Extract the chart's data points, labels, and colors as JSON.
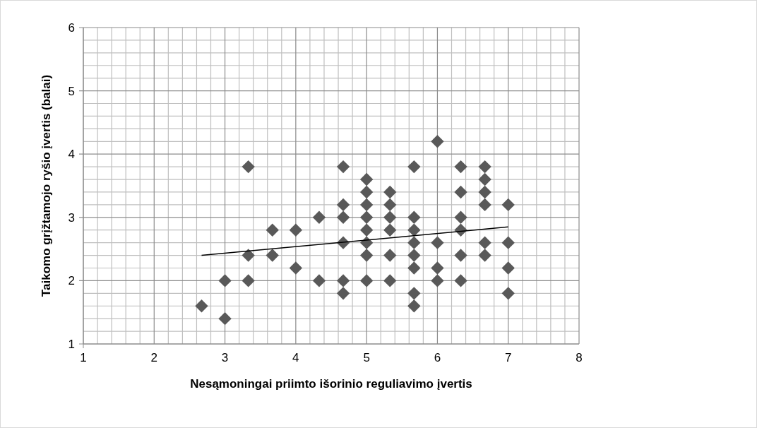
{
  "chart_data": {
    "type": "scatter",
    "xlabel": "Nesąmoningai priimto išorinio reguliavimo įvertis",
    "ylabel": "Taikomo grįžtamojo ryšio įvertis (balai)",
    "xlim": [
      1,
      8
    ],
    "ylim": [
      1,
      6
    ],
    "xticks": [
      1,
      2,
      3,
      4,
      5,
      6,
      7,
      8
    ],
    "yticks": [
      1,
      2,
      3,
      4,
      5,
      6
    ],
    "grid": true,
    "series": [
      {
        "color": "#595959",
        "marker": "diamond",
        "x": [
          2.67,
          3,
          3,
          3.33,
          3.33,
          3.33,
          3.67,
          3.67,
          4,
          4,
          4.33,
          4.33,
          4.67,
          4.67,
          4.67,
          4.67,
          4.67,
          4.67,
          5,
          5,
          5,
          5,
          5,
          5,
          5,
          5,
          5.33,
          5.33,
          5.33,
          5.33,
          5.33,
          5.33,
          5.67,
          5.67,
          5.67,
          5.67,
          5.67,
          5.67,
          5.67,
          5.67,
          6,
          6,
          6,
          6,
          6.33,
          6.33,
          6.33,
          6.33,
          6.33,
          6.33,
          6.67,
          6.67,
          6.67,
          6.67,
          6.67,
          6.67,
          7,
          7,
          7,
          7
        ],
        "values": [
          1.6,
          2,
          1.4,
          3.8,
          2.4,
          2,
          2.8,
          2.4,
          2.8,
          2.2,
          3,
          2,
          3.8,
          3.2,
          3,
          2.6,
          2,
          1.8,
          3.6,
          3.4,
          3.2,
          3,
          2.8,
          2.6,
          2.4,
          2,
          3.4,
          3.2,
          3,
          2.8,
          2.4,
          2,
          3.8,
          3,
          2.8,
          2.6,
          2.4,
          2.2,
          1.8,
          1.6,
          4.2,
          2.6,
          2.2,
          2,
          3.8,
          3.4,
          3,
          2.8,
          2.4,
          2,
          3.8,
          3.6,
          3.4,
          3.2,
          2.6,
          2.4,
          3.2,
          2.6,
          2.2,
          1.8
        ]
      },
      {
        "type": "line",
        "color": "#000000",
        "marker": "none",
        "x": [
          2.67,
          7
        ],
        "values": [
          2.4,
          2.85
        ]
      }
    ]
  }
}
